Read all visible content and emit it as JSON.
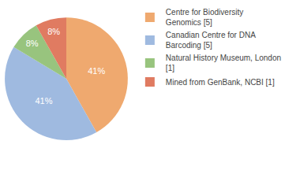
{
  "chart_data": {
    "type": "pie",
    "categories": [
      "Centre for Biodiversity Genomics [5]",
      "Canadian Centre for DNA Barcoding [5]",
      "Natural History Museum, London [1]",
      "Mined from GenBank, NCBI [1]"
    ],
    "values": [
      41,
      41,
      8,
      8
    ],
    "value_labels": [
      "41%",
      "41%",
      "8%",
      "8%"
    ],
    "colors": [
      "#efa96f",
      "#9fbae0",
      "#98c47e",
      "#e07b61"
    ],
    "data_labels": true,
    "legend": "upper right"
  }
}
